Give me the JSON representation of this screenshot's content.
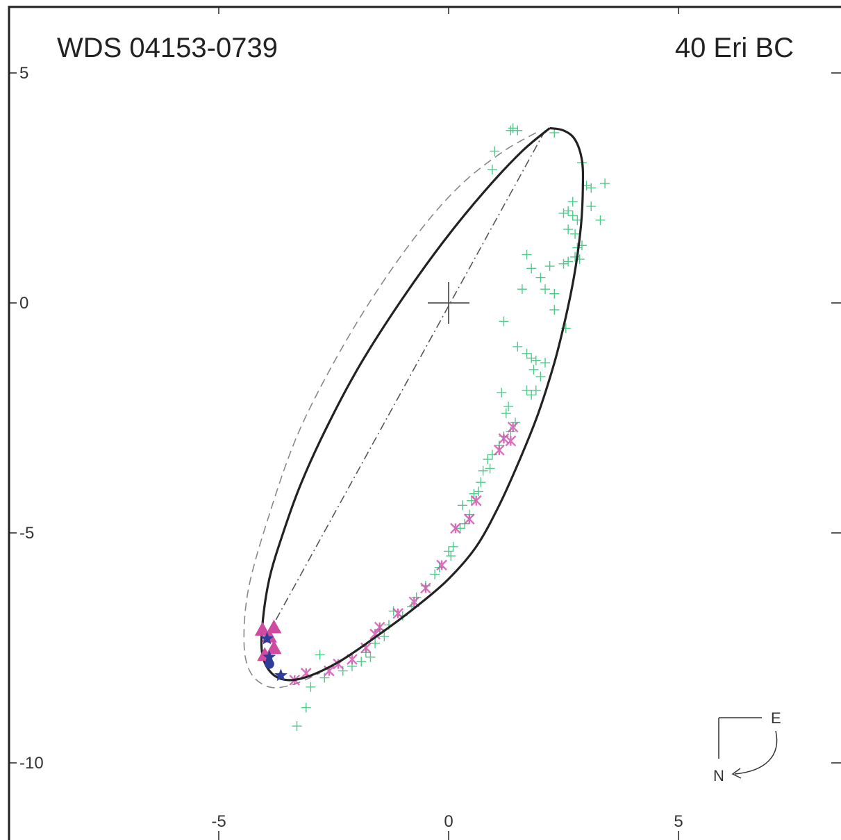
{
  "chart_data": {
    "type": "scatter",
    "title_left": "WDS 04153-0739",
    "title_right": "40 Eri BC",
    "xlim": [
      -10,
      8.4
    ],
    "ylim": [
      -11.5,
      6.5
    ],
    "x_ticks": [
      {
        "value": -5,
        "label": "-5"
      },
      {
        "value": 0,
        "label": "0"
      },
      {
        "value": 5,
        "label": "5"
      }
    ],
    "y_ticks": [
      {
        "value": 5,
        "label": "5"
      },
      {
        "value": 0,
        "label": "0"
      },
      {
        "value": -5,
        "label": "-5"
      },
      {
        "value": -10,
        "label": "-10"
      }
    ],
    "orbit_current": {
      "style": "solid",
      "color": "#222222",
      "points": [
        [
          2.2,
          3.8
        ],
        [
          2.5,
          3.75
        ],
        [
          2.75,
          3.55
        ],
        [
          2.9,
          3.1
        ],
        [
          2.92,
          2.5
        ],
        [
          2.88,
          1.7
        ],
        [
          2.75,
          0.7
        ],
        [
          2.55,
          -0.3
        ],
        [
          2.3,
          -1.3
        ],
        [
          1.95,
          -2.4
        ],
        [
          1.55,
          -3.4
        ],
        [
          1.1,
          -4.4
        ],
        [
          0.6,
          -5.3
        ],
        [
          0.0,
          -6.0
        ],
        [
          -0.7,
          -6.6
        ],
        [
          -1.5,
          -7.2
        ],
        [
          -2.3,
          -7.75
        ],
        [
          -3.0,
          -8.1
        ],
        [
          -3.5,
          -8.2
        ],
        [
          -3.85,
          -8.05
        ],
        [
          -4.05,
          -7.65
        ],
        [
          -4.05,
          -7.0
        ],
        [
          -3.9,
          -6.0
        ],
        [
          -3.6,
          -5.0
        ],
        [
          -3.2,
          -3.9
        ],
        [
          -2.6,
          -2.6
        ],
        [
          -1.9,
          -1.3
        ],
        [
          -1.0,
          0.1
        ],
        [
          -0.1,
          1.35
        ],
        [
          0.8,
          2.45
        ],
        [
          1.6,
          3.3
        ],
        [
          2.2,
          3.8
        ]
      ]
    },
    "orbit_previous": {
      "style": "dashed",
      "color": "#888888",
      "points": [
        [
          1.9,
          3.7
        ],
        [
          1.2,
          3.3
        ],
        [
          0.3,
          2.6
        ],
        [
          -0.6,
          1.6
        ],
        [
          -1.6,
          0.2
        ],
        [
          -2.5,
          -1.3
        ],
        [
          -3.3,
          -2.9
        ],
        [
          -3.9,
          -4.6
        ],
        [
          -4.35,
          -6.2
        ],
        [
          -4.45,
          -7.4
        ],
        [
          -4.3,
          -8.05
        ],
        [
          -3.9,
          -8.35
        ],
        [
          -3.4,
          -8.3
        ],
        [
          -2.8,
          -8.05
        ]
      ]
    },
    "line_of_nodes": {
      "style": "dashdot",
      "color": "#555555",
      "from": [
        2.1,
        3.75
      ],
      "to": [
        -3.9,
        -7.15
      ]
    },
    "primary_marker": {
      "x": 0,
      "y": 0,
      "label": ""
    },
    "observations_visual": {
      "marker": "plus",
      "color": "#4fc98a",
      "points": [
        [
          1.35,
          3.75
        ],
        [
          1.4,
          3.8
        ],
        [
          1.5,
          3.75
        ],
        [
          1.0,
          3.3
        ],
        [
          0.95,
          2.9
        ],
        [
          2.3,
          3.7
        ],
        [
          2.9,
          3.05
        ],
        [
          3.0,
          2.55
        ],
        [
          3.1,
          2.5
        ],
        [
          3.4,
          2.6
        ],
        [
          2.7,
          2.2
        ],
        [
          3.1,
          2.1
        ],
        [
          2.7,
          1.9
        ],
        [
          2.5,
          1.95
        ],
        [
          2.6,
          2.0
        ],
        [
          3.3,
          1.8
        ],
        [
          2.8,
          1.8
        ],
        [
          2.75,
          1.5
        ],
        [
          2.6,
          1.6
        ],
        [
          2.8,
          1.2
        ],
        [
          2.9,
          1.25
        ],
        [
          2.85,
          0.95
        ],
        [
          2.75,
          1.0
        ],
        [
          2.6,
          0.9
        ],
        [
          2.5,
          0.85
        ],
        [
          2.2,
          0.8
        ],
        [
          1.8,
          0.75
        ],
        [
          2.0,
          0.55
        ],
        [
          1.7,
          1.05
        ],
        [
          1.6,
          0.3
        ],
        [
          2.3,
          0.2
        ],
        [
          2.1,
          0.3
        ],
        [
          2.3,
          -0.15
        ],
        [
          2.55,
          -0.55
        ],
        [
          1.2,
          -0.4
        ],
        [
          1.5,
          -0.95
        ],
        [
          1.7,
          -1.1
        ],
        [
          1.8,
          -1.2
        ],
        [
          1.9,
          -1.25
        ],
        [
          2.1,
          -1.3
        ],
        [
          1.85,
          -1.45
        ],
        [
          2.0,
          -1.6
        ],
        [
          1.9,
          -1.9
        ],
        [
          1.8,
          -2.0
        ],
        [
          1.7,
          -1.9
        ],
        [
          1.15,
          -1.95
        ],
        [
          1.3,
          -2.25
        ],
        [
          1.25,
          -2.4
        ],
        [
          1.35,
          -2.8
        ],
        [
          1.45,
          -2.6
        ],
        [
          1.2,
          -2.9
        ],
        [
          1.1,
          -3.1
        ],
        [
          0.95,
          -3.3
        ],
        [
          0.9,
          -3.6
        ],
        [
          0.85,
          -3.4
        ],
        [
          0.75,
          -3.65
        ],
        [
          0.7,
          -3.9
        ],
        [
          0.65,
          -4.1
        ],
        [
          0.55,
          -4.15
        ],
        [
          0.5,
          -4.3
        ],
        [
          0.45,
          -4.6
        ],
        [
          0.3,
          -4.4
        ],
        [
          0.35,
          -4.8
        ],
        [
          0.25,
          -4.9
        ],
        [
          0.1,
          -5.3
        ],
        [
          0.05,
          -5.5
        ],
        [
          0.0,
          -5.4
        ],
        [
          -0.2,
          -5.75
        ],
        [
          -0.3,
          -5.9
        ],
        [
          -0.5,
          -6.15
        ],
        [
          -0.7,
          -6.4
        ],
        [
          -0.8,
          -6.6
        ],
        [
          -1.0,
          -6.8
        ],
        [
          -1.2,
          -6.7
        ],
        [
          -1.3,
          -7.0
        ],
        [
          -1.5,
          -7.1
        ],
        [
          -1.4,
          -7.25
        ],
        [
          -1.6,
          -7.4
        ],
        [
          -1.8,
          -7.6
        ],
        [
          -1.7,
          -7.7
        ],
        [
          -1.9,
          -7.8
        ],
        [
          -2.1,
          -7.9
        ],
        [
          -2.3,
          -8.0
        ],
        [
          -2.7,
          -8.15
        ],
        [
          -3.0,
          -8.35
        ],
        [
          -2.8,
          -7.65
        ],
        [
          -3.3,
          -9.2
        ],
        [
          -3.1,
          -8.8
        ]
      ]
    },
    "observations_speckle": {
      "marker": "asterisk",
      "color": "#d157b0",
      "points": [
        [
          1.4,
          -2.7
        ],
        [
          1.35,
          -3.0
        ],
        [
          1.2,
          -2.95
        ],
        [
          1.1,
          -3.2
        ],
        [
          0.6,
          -4.3
        ],
        [
          0.45,
          -4.7
        ],
        [
          0.15,
          -4.9
        ],
        [
          -0.15,
          -5.7
        ],
        [
          -0.5,
          -6.2
        ],
        [
          -0.75,
          -6.5
        ],
        [
          -1.1,
          -6.75
        ],
        [
          -1.5,
          -7.05
        ],
        [
          -1.6,
          -7.2
        ],
        [
          -1.8,
          -7.5
        ],
        [
          -2.1,
          -7.75
        ],
        [
          -2.4,
          -7.85
        ],
        [
          -2.6,
          -8.0
        ],
        [
          -3.1,
          -8.05
        ],
        [
          -3.35,
          -8.2
        ]
      ]
    },
    "observations_triangle": {
      "marker": "triangle",
      "color": "#d04aa0",
      "points": [
        [
          -4.05,
          -7.1
        ],
        [
          -3.8,
          -7.05
        ],
        [
          -3.9,
          -7.25
        ],
        [
          -4.0,
          -7.65
        ],
        [
          -3.8,
          -7.5
        ]
      ]
    },
    "observations_star": {
      "marker": "star",
      "color": "#2d3d99",
      "points": [
        [
          -3.95,
          -7.3
        ],
        [
          -3.9,
          -7.7
        ],
        [
          -3.65,
          -8.1
        ]
      ]
    },
    "observations_circle": {
      "marker": "circle",
      "color": "#2d3d99",
      "points": [
        [
          -3.9,
          -7.85
        ]
      ]
    },
    "compass": {
      "east_label": "E",
      "north_label": "N"
    }
  }
}
